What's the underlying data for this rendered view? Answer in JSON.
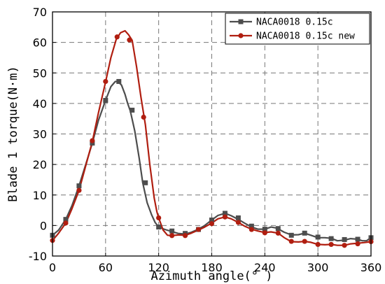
{
  "chart_data": {
    "type": "line",
    "xlabel": "Azimuth angle(° )",
    "ylabel": "Blade 1 torque(N·m)",
    "xlim": [
      0,
      360
    ],
    "ylim": [
      -10,
      70
    ],
    "xticks": [
      0,
      60,
      120,
      180,
      240,
      300,
      360
    ],
    "yticks": [
      -10,
      0,
      10,
      20,
      30,
      40,
      50,
      60,
      70
    ],
    "grid": true,
    "legend_position": "top-right",
    "series": [
      {
        "name": "NACA0018 0.15c",
        "color": "#4d4d4d",
        "marker": "square",
        "line": [
          [
            0,
            -3.2
          ],
          [
            7,
            -1.5
          ],
          [
            15,
            2
          ],
          [
            22,
            6.5
          ],
          [
            30,
            13
          ],
          [
            37,
            19.5
          ],
          [
            45,
            27
          ],
          [
            52,
            34.5
          ],
          [
            60,
            41
          ],
          [
            66,
            45.5
          ],
          [
            71,
            47.2
          ],
          [
            74,
            47.2
          ],
          [
            78,
            46
          ],
          [
            82,
            43
          ],
          [
            85,
            40
          ],
          [
            88,
            37.5
          ],
          [
            93,
            31
          ],
          [
            98,
            22
          ],
          [
            102,
            14
          ],
          [
            107,
            7.5
          ],
          [
            112,
            3.5
          ],
          [
            116,
            1
          ],
          [
            120,
            -0.5
          ],
          [
            127,
            -1.3
          ],
          [
            135,
            -2
          ],
          [
            142,
            -2.6
          ],
          [
            150,
            -2.8
          ],
          [
            157,
            -2.2
          ],
          [
            165,
            -1.2
          ],
          [
            172,
            0
          ],
          [
            180,
            1.8
          ],
          [
            187,
            3.3
          ],
          [
            195,
            4
          ],
          [
            202,
            3.2
          ],
          [
            210,
            2
          ],
          [
            217,
            0.8
          ],
          [
            225,
            -0.5
          ],
          [
            232,
            -1.2
          ],
          [
            240,
            -1.2
          ],
          [
            247,
            -0.5
          ],
          [
            253,
            -0.8
          ],
          [
            262,
            -2.2
          ],
          [
            270,
            -3.1
          ],
          [
            278,
            -3
          ],
          [
            285,
            -2.5
          ],
          [
            292,
            -3.2
          ],
          [
            300,
            -4
          ],
          [
            308,
            -4
          ],
          [
            315,
            -4.2
          ],
          [
            322,
            -5
          ],
          [
            330,
            -4.8
          ],
          [
            337,
            -4.3
          ],
          [
            345,
            -4.5
          ],
          [
            350,
            -5
          ],
          [
            355,
            -5
          ],
          [
            360,
            -4
          ]
        ],
        "markers": [
          [
            0,
            -3.2
          ],
          [
            15,
            2
          ],
          [
            30,
            13
          ],
          [
            45,
            27
          ],
          [
            60,
            41
          ],
          [
            75,
            47.2
          ],
          [
            90,
            37.8
          ],
          [
            105,
            14
          ],
          [
            120,
            -0.5
          ],
          [
            135,
            -1.8
          ],
          [
            150,
            -2.6
          ],
          [
            165,
            -1.3
          ],
          [
            180,
            1.8
          ],
          [
            195,
            4
          ],
          [
            210,
            2.5
          ],
          [
            225,
            -0.2
          ],
          [
            240,
            -1.2
          ],
          [
            255,
            -1
          ],
          [
            270,
            -3.2
          ],
          [
            285,
            -2.5
          ],
          [
            300,
            -3.8
          ],
          [
            315,
            -4.3
          ],
          [
            330,
            -4.6
          ],
          [
            345,
            -4.5
          ],
          [
            360,
            -4
          ]
        ]
      },
      {
        "name": "NACA0018 0.15c new",
        "color": "#b01e10",
        "marker": "circle",
        "line": [
          [
            0,
            -4.9
          ],
          [
            7,
            -2.5
          ],
          [
            15,
            0.8
          ],
          [
            22,
            5.5
          ],
          [
            30,
            11.5
          ],
          [
            37,
            19
          ],
          [
            45,
            27.5
          ],
          [
            52,
            37
          ],
          [
            60,
            47
          ],
          [
            66,
            55
          ],
          [
            72,
            61
          ],
          [
            77,
            63.2
          ],
          [
            82,
            63.8
          ],
          [
            86,
            62.5
          ],
          [
            90,
            60.7
          ],
          [
            95,
            52
          ],
          [
            100,
            42
          ],
          [
            105,
            33
          ],
          [
            110,
            20
          ],
          [
            115,
            9
          ],
          [
            118,
            4.5
          ],
          [
            120,
            2.5
          ],
          [
            125,
            -1.5
          ],
          [
            130,
            -3.2
          ],
          [
            135,
            -3.3
          ],
          [
            142,
            -3.1
          ],
          [
            150,
            -3.2
          ],
          [
            157,
            -2.5
          ],
          [
            165,
            -1.5
          ],
          [
            172,
            -0.5
          ],
          [
            180,
            0.8
          ],
          [
            187,
            2.2
          ],
          [
            195,
            2.8
          ],
          [
            202,
            2.2
          ],
          [
            210,
            1
          ],
          [
            217,
            -0.2
          ],
          [
            225,
            -1.2
          ],
          [
            232,
            -1.8
          ],
          [
            240,
            -2.3
          ],
          [
            247,
            -2.1
          ],
          [
            255,
            -2.5
          ],
          [
            262,
            -4
          ],
          [
            270,
            -5.3
          ],
          [
            278,
            -5.4
          ],
          [
            285,
            -5.2
          ],
          [
            292,
            -5.5
          ],
          [
            300,
            -6.2
          ],
          [
            308,
            -6.3
          ],
          [
            315,
            -6.2
          ],
          [
            322,
            -6.5
          ],
          [
            330,
            -6.5
          ],
          [
            337,
            -6
          ],
          [
            345,
            -5.8
          ],
          [
            352,
            -5.6
          ],
          [
            360,
            -5.3
          ]
        ],
        "markers": [
          [
            0,
            -4.9
          ],
          [
            15,
            0.8
          ],
          [
            30,
            11.5
          ],
          [
            45,
            27.8
          ],
          [
            60,
            47.2
          ],
          [
            73,
            61.8
          ],
          [
            87,
            60.8
          ],
          [
            103,
            35.5
          ],
          [
            120,
            2.5
          ],
          [
            135,
            -3.3
          ],
          [
            150,
            -3.3
          ],
          [
            165,
            -1.3
          ],
          [
            180,
            0.6
          ],
          [
            195,
            2.8
          ],
          [
            210,
            1
          ],
          [
            225,
            -1.3
          ],
          [
            240,
            -2.4
          ],
          [
            255,
            -2.5
          ],
          [
            270,
            -5.2
          ],
          [
            285,
            -5.2
          ],
          [
            300,
            -6.2
          ],
          [
            315,
            -6.2
          ],
          [
            330,
            -6.5
          ],
          [
            345,
            -6
          ],
          [
            360,
            -5.3
          ]
        ]
      }
    ]
  }
}
